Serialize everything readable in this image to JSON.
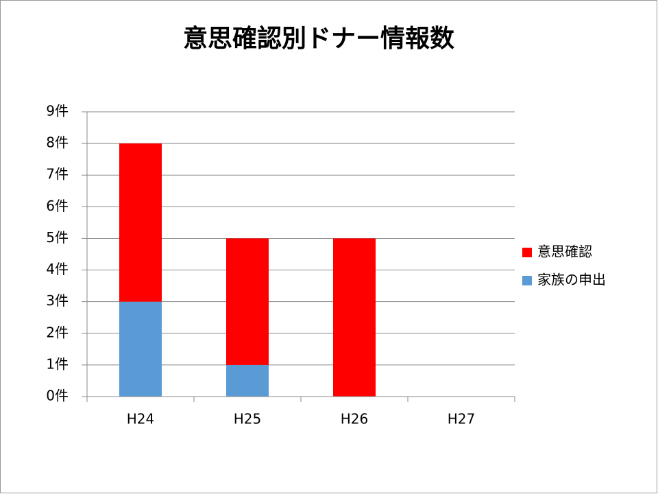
{
  "chart_data": {
    "type": "stacked_bar",
    "title": "意思確認別ドナー情報数",
    "categories": [
      "H24",
      "H25",
      "H26",
      "H27"
    ],
    "series": [
      {
        "name": "家族の申出",
        "color": "#5b9bd5",
        "values": [
          3,
          1,
          0,
          0
        ]
      },
      {
        "name": "意思確認",
        "color": "#ff0000",
        "values": [
          5,
          4,
          5,
          0
        ]
      }
    ],
    "ylim": [
      0,
      9
    ],
    "yticks": [
      {
        "value": 0,
        "label": "0件"
      },
      {
        "value": 1,
        "label": "1件"
      },
      {
        "value": 2,
        "label": "2件"
      },
      {
        "value": 3,
        "label": "3件"
      },
      {
        "value": 4,
        "label": "4件"
      },
      {
        "value": 5,
        "label": "5件"
      },
      {
        "value": 6,
        "label": "6件"
      },
      {
        "value": 7,
        "label": "7件"
      },
      {
        "value": 8,
        "label": "8件"
      },
      {
        "value": 9,
        "label": "9件"
      }
    ],
    "grid": true,
    "legend": "right"
  }
}
